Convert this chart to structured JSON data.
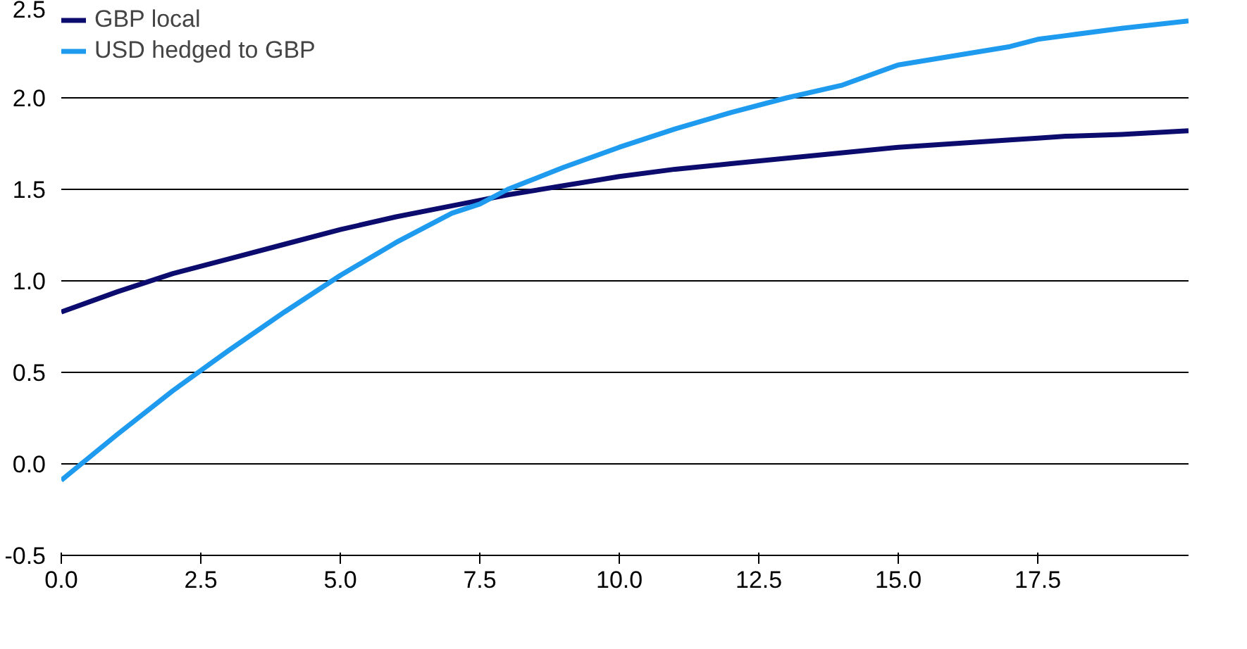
{
  "chart_data": {
    "type": "line",
    "x": [
      0,
      1,
      2,
      3,
      4,
      5,
      6,
      7,
      7.5,
      8,
      9,
      10,
      11,
      12,
      13,
      14,
      15,
      16,
      17,
      17.5,
      18,
      19,
      20.2
    ],
    "series": [
      {
        "name": "GBP local",
        "color": "#0c0c6e",
        "values": [
          0.83,
          0.94,
          1.04,
          1.12,
          1.2,
          1.28,
          1.35,
          1.41,
          1.44,
          1.47,
          1.52,
          1.57,
          1.61,
          1.64,
          1.67,
          1.7,
          1.73,
          1.75,
          1.77,
          1.78,
          1.79,
          1.8,
          1.82
        ]
      },
      {
        "name": "USD hedged to GBP",
        "color": "#1e9bef",
        "values": [
          -0.09,
          0.16,
          0.4,
          0.62,
          0.83,
          1.03,
          1.21,
          1.37,
          1.42,
          1.5,
          1.62,
          1.73,
          1.83,
          1.92,
          2.0,
          2.07,
          2.18,
          2.23,
          2.28,
          2.32,
          2.34,
          2.38,
          2.42
        ]
      }
    ],
    "xlim": [
      0,
      20.2
    ],
    "ylim": [
      -0.5,
      2.5
    ],
    "xticks": [
      {
        "value": 0,
        "label": "0.0"
      },
      2.5,
      {
        "value": 5,
        "label": "5.0"
      },
      7.5,
      {
        "value": 10,
        "label": "10.0"
      },
      12.5,
      {
        "value": 15,
        "label": "15.0"
      },
      17.5
    ],
    "yticks": [
      -0.5,
      {
        "value": 0,
        "label": "0.0"
      },
      0.5,
      {
        "value": 1,
        "label": "1.0"
      },
      1.5,
      {
        "value": 2,
        "label": "2.0"
      },
      2.5
    ],
    "grid": "y",
    "legend": "top left",
    "line_style": "solid"
  }
}
